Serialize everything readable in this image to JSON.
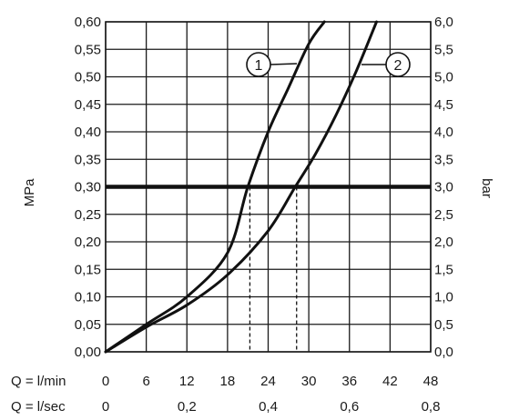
{
  "chart_data": {
    "type": "line",
    "title": "",
    "left_axis": {
      "label": "MPa",
      "range": [
        0,
        0.6
      ],
      "ticks": [
        "0,00",
        "0,05",
        "0,10",
        "0,15",
        "0,20",
        "0,25",
        "0,30",
        "0,35",
        "0,40",
        "0,45",
        "0,50",
        "0,55",
        "0,60"
      ]
    },
    "right_axis": {
      "label": "bar",
      "range": [
        0,
        6
      ],
      "ticks": [
        "0,0",
        "0,5",
        "1,0",
        "1,5",
        "2,0",
        "2,5",
        "3,0",
        "3,5",
        "4,0",
        "4,5",
        "5,0",
        "5,5",
        "6,0"
      ]
    },
    "x_axis_lmin": {
      "prefix": "Q = l/min",
      "range": [
        0,
        48
      ],
      "ticks": [
        "0",
        "6",
        "12",
        "18",
        "24",
        "30",
        "36",
        "42",
        "48"
      ]
    },
    "x_axis_lsec": {
      "prefix": "Q = l/sec",
      "range": [
        0,
        0.8
      ],
      "ticks": [
        "0",
        "0,2",
        "0,4",
        "0,6",
        "0,8"
      ]
    },
    "grid": true,
    "reference_line": {
      "y": 0.3,
      "style": "bold"
    },
    "series": [
      {
        "name": "1",
        "x": [
          0,
          6,
          12,
          18,
          21,
          24,
          27,
          30,
          32.3
        ],
        "y": [
          0,
          0.05,
          0.1,
          0.18,
          0.3,
          0.4,
          0.48,
          0.56,
          0.6
        ],
        "drop_line_x": 21.3
      },
      {
        "name": "2",
        "x": [
          0,
          6,
          12,
          18,
          24,
          28,
          31,
          34,
          37,
          40
        ],
        "y": [
          0,
          0.045,
          0.085,
          0.14,
          0.22,
          0.3,
          0.36,
          0.43,
          0.51,
          0.6
        ],
        "drop_line_x": 28.2
      }
    ]
  }
}
